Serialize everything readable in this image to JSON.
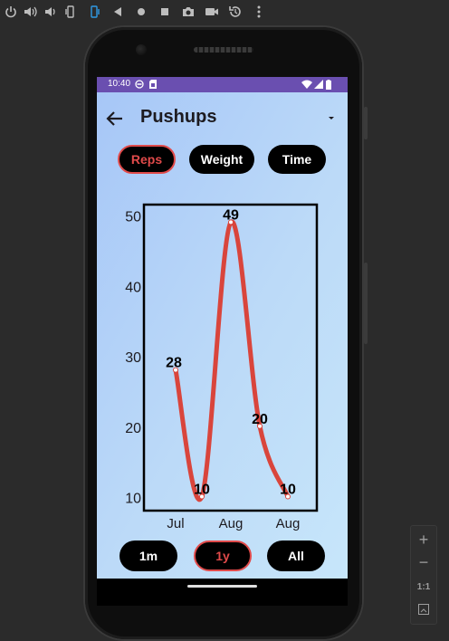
{
  "status_bar": {
    "time": "10:40"
  },
  "app": {
    "title": "Pushups"
  },
  "metric_tabs": [
    {
      "label": "Reps",
      "selected": true
    },
    {
      "label": "Weight",
      "selected": false
    },
    {
      "label": "Time",
      "selected": false
    }
  ],
  "range_tabs": [
    {
      "label": "1m",
      "selected": false
    },
    {
      "label": "1y",
      "selected": true
    },
    {
      "label": "All",
      "selected": false
    }
  ],
  "chart_data": {
    "type": "line",
    "x": [
      "Jul",
      "",
      "Aug",
      "",
      "Aug"
    ],
    "values": [
      28,
      10,
      49,
      20,
      10
    ],
    "data_labels": [
      "28",
      "10",
      "49",
      "20",
      "10"
    ],
    "x_tick_labels": [
      "Jul",
      "Aug",
      "Aug"
    ],
    "y_ticks": [
      10,
      20,
      30,
      40,
      50
    ],
    "y_tick_labels": [
      "10",
      "20",
      "30",
      "40",
      "50"
    ],
    "ylim": [
      8,
      51.5
    ],
    "title": "",
    "xlabel": "",
    "ylabel": "",
    "line_color": "#d9453c",
    "grid": false,
    "legend": "none"
  },
  "zoom_panel": {
    "plus": "+",
    "minus": "−",
    "actual": "1:1"
  },
  "colors": {
    "accent": "#e04a4a",
    "status_bar": "#6a4fb0",
    "pill_bg": "#000000"
  },
  "icons": {
    "toolbar": [
      "power-icon",
      "volume-up-icon",
      "volume-down-icon",
      "rotate-left-icon",
      "rotate-right-icon",
      "back-icon",
      "home-icon",
      "overview-icon",
      "camera-icon",
      "video-icon",
      "replay-icon",
      "more-icon"
    ]
  }
}
